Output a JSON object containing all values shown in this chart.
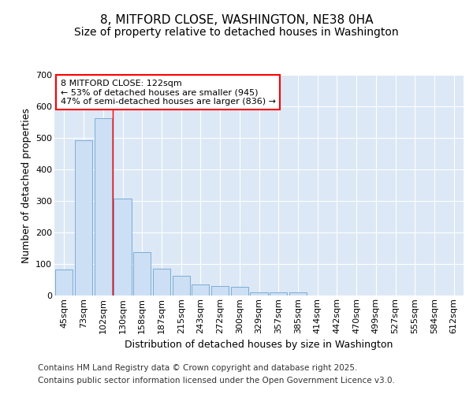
{
  "title_line1": "8, MITFORD CLOSE, WASHINGTON, NE38 0HA",
  "title_line2": "Size of property relative to detached houses in Washington",
  "xlabel": "Distribution of detached houses by size in Washington",
  "ylabel": "Number of detached properties",
  "categories": [
    "45sqm",
    "73sqm",
    "102sqm",
    "130sqm",
    "158sqm",
    "187sqm",
    "215sqm",
    "243sqm",
    "272sqm",
    "300sqm",
    "329sqm",
    "357sqm",
    "385sqm",
    "414sqm",
    "442sqm",
    "470sqm",
    "499sqm",
    "527sqm",
    "555sqm",
    "584sqm",
    "612sqm"
  ],
  "values": [
    83,
    493,
    563,
    308,
    138,
    85,
    63,
    35,
    30,
    28,
    10,
    10,
    10,
    0,
    0,
    0,
    0,
    0,
    0,
    0,
    0
  ],
  "bar_color": "#ccdff5",
  "bar_edge_color": "#7badd6",
  "red_line_x": 2.5,
  "annotation_text": "8 MITFORD CLOSE: 122sqm\n← 53% of detached houses are smaller (945)\n47% of semi-detached houses are larger (836) →",
  "annotation_box_color": "white",
  "annotation_box_edge_color": "red",
  "background_color": "#ffffff",
  "plot_background": "#dce8f5",
  "grid_color": "white",
  "ylim": [
    0,
    700
  ],
  "yticks": [
    0,
    100,
    200,
    300,
    400,
    500,
    600,
    700
  ],
  "footer_line1": "Contains HM Land Registry data © Crown copyright and database right 2025.",
  "footer_line2": "Contains public sector information licensed under the Open Government Licence v3.0.",
  "title_fontsize": 11,
  "subtitle_fontsize": 10,
  "axis_label_fontsize": 9,
  "tick_fontsize": 8,
  "annotation_fontsize": 8,
  "footer_fontsize": 7.5
}
